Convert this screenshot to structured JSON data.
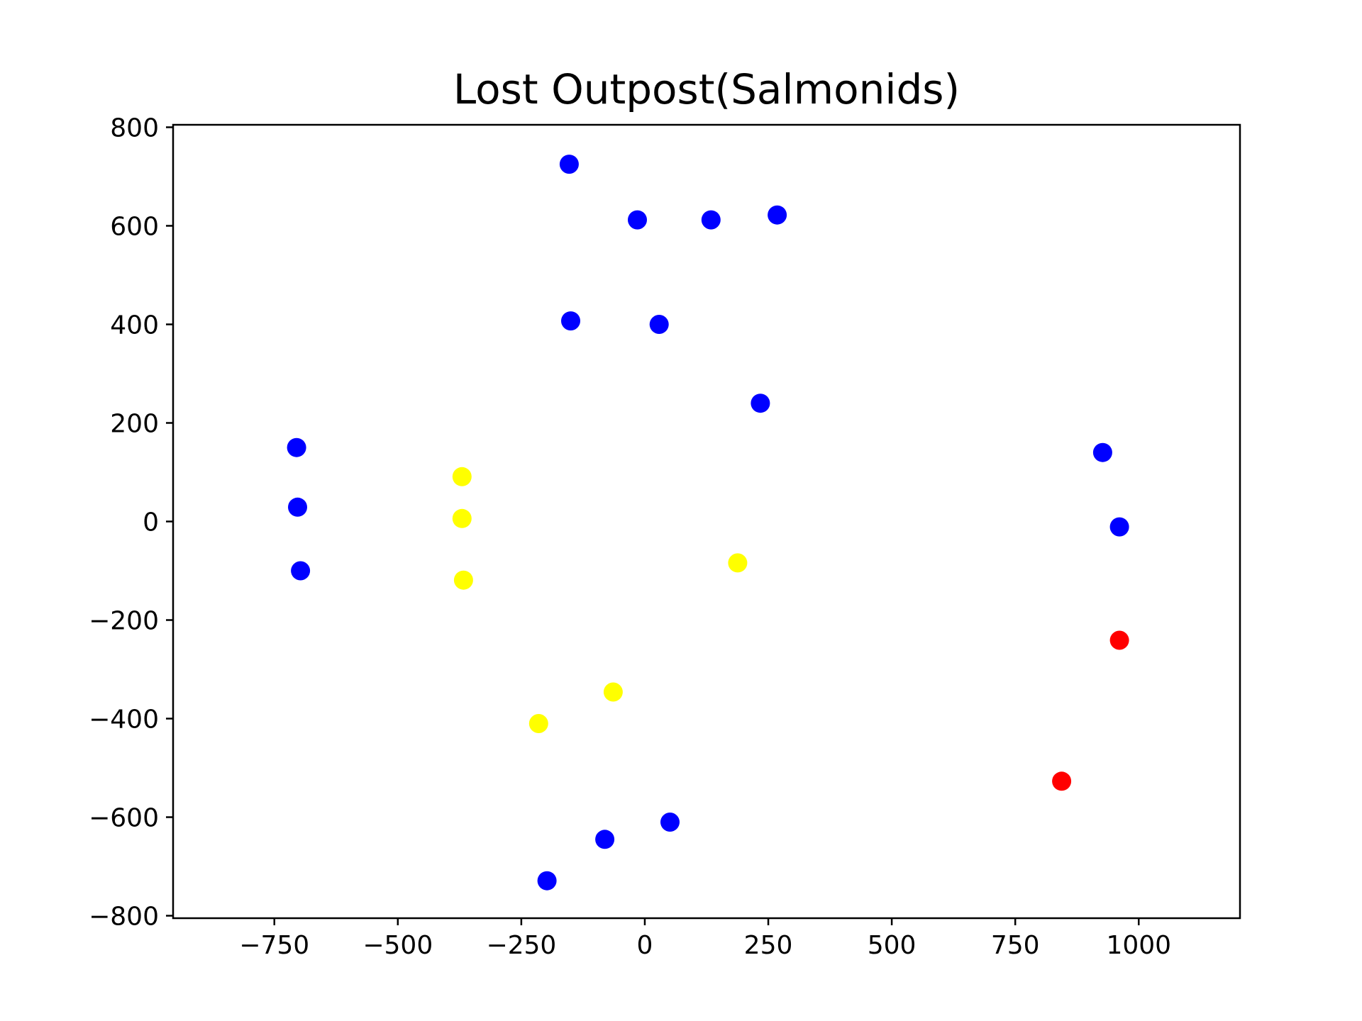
{
  "chart_data": {
    "type": "scatter",
    "title": "Lost Outpost(Salmonids)",
    "xlabel": "",
    "ylabel": "",
    "xlim": [
      -955,
      1205
    ],
    "ylim": [
      -805,
      805
    ],
    "grid": false,
    "legend": "none",
    "x_ticks": [
      {
        "value": -750,
        "label": "−750"
      },
      {
        "value": -500,
        "label": "−500"
      },
      {
        "value": -250,
        "label": "−250"
      },
      {
        "value": 0,
        "label": "0"
      },
      {
        "value": 250,
        "label": "250"
      },
      {
        "value": 500,
        "label": "500"
      },
      {
        "value": 750,
        "label": "750"
      },
      {
        "value": 1000,
        "label": "1000"
      }
    ],
    "y_ticks": [
      {
        "value": 800,
        "label": "800"
      },
      {
        "value": 600,
        "label": "600"
      },
      {
        "value": 400,
        "label": "400"
      },
      {
        "value": 200,
        "label": "200"
      },
      {
        "value": 0,
        "label": "0"
      },
      {
        "value": -200,
        "label": "−200"
      },
      {
        "value": -400,
        "label": "−400"
      },
      {
        "value": -600,
        "label": "−600"
      },
      {
        "value": -800,
        "label": "−800"
      }
    ],
    "series": [
      {
        "color": "#0000ff",
        "points": [
          {
            "x": -153,
            "y": 725
          },
          {
            "x": -15,
            "y": 612
          },
          {
            "x": 134,
            "y": 612
          },
          {
            "x": 268,
            "y": 622
          },
          {
            "x": -150,
            "y": 407
          },
          {
            "x": 29,
            "y": 400
          },
          {
            "x": 234,
            "y": 240
          },
          {
            "x": -705,
            "y": 150
          },
          {
            "x": -703,
            "y": 29
          },
          {
            "x": -697,
            "y": -100
          },
          {
            "x": 927,
            "y": 140
          },
          {
            "x": 961,
            "y": -11
          },
          {
            "x": 51,
            "y": -610
          },
          {
            "x": -81,
            "y": -645
          },
          {
            "x": -198,
            "y": -729
          }
        ]
      },
      {
        "color": "#ffff00",
        "points": [
          {
            "x": -370,
            "y": 91
          },
          {
            "x": -370,
            "y": 6
          },
          {
            "x": -367,
            "y": -119
          },
          {
            "x": 188,
            "y": -84
          },
          {
            "x": -64,
            "y": -346
          },
          {
            "x": -215,
            "y": -410
          }
        ]
      },
      {
        "color": "#ff0000",
        "points": [
          {
            "x": 961,
            "y": -241
          },
          {
            "x": 844,
            "y": -527
          }
        ]
      }
    ]
  }
}
